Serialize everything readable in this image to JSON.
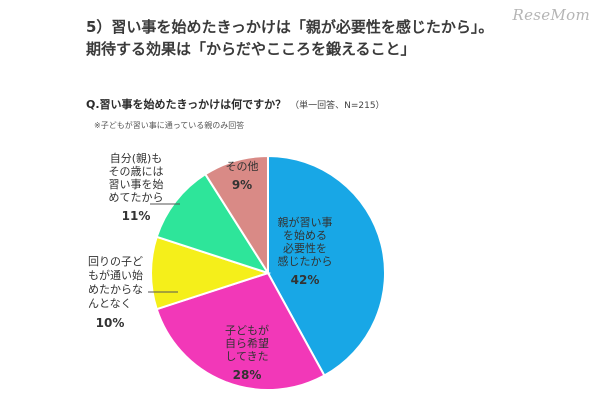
{
  "headline": {
    "line1": "5）習い事を始めたきっかけは「親が必要性を感じたから」。",
    "line2": "期待する効果は「からだやこころを鍛えること」"
  },
  "logo": "ReseMom",
  "question": {
    "text": "Q.習い事を始めたきっかけは何ですか？",
    "note": "（単一回答、N=215）"
  },
  "note": "※子どもが習い事に通っている親のみ回答",
  "chart_data": {
    "type": "pie",
    "slices": [
      {
        "label_lines": [
          "親が習い事",
          "を始める",
          "必要性を",
          "感じたから"
        ],
        "percent_label": "42%",
        "value": 42,
        "color": "#18a7e6"
      },
      {
        "label_lines": [
          "子どもが",
          "自ら希望",
          "してきた"
        ],
        "percent_label": "28%",
        "value": 28,
        "color": "#f238b8"
      },
      {
        "label_lines": [
          "回りの子ど",
          "もが通い始",
          "めたからな",
          "んとなく"
        ],
        "percent_label": "10%",
        "value": 10,
        "color": "#f5ef1a"
      },
      {
        "label_lines": [
          "自分(親)も",
          "その歳には",
          "習い事を始",
          "めてたから"
        ],
        "percent_label": "11%",
        "value": 11,
        "color": "#2ee59a"
      },
      {
        "label_lines": [
          "その他"
        ],
        "percent_label": "9%",
        "value": 9,
        "color": "#d98a86"
      }
    ]
  }
}
